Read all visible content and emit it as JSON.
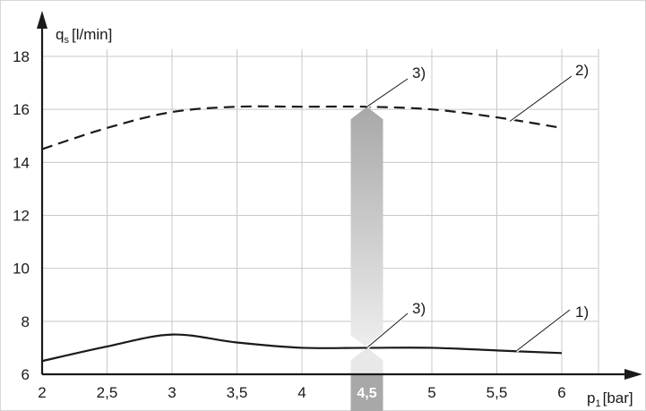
{
  "chart_data": {
    "type": "line",
    "ylabel_main": "q",
    "ylabel_sub": "s",
    "ylabel_unit": "[l/min]",
    "xlabel_main": "p",
    "xlabel_sub": "1",
    "xlabel_unit": "[bar]",
    "xlim": [
      2,
      6.3
    ],
    "ylim": [
      6,
      18
    ],
    "x_ticks": [
      2,
      2.5,
      3,
      3.5,
      4,
      4.5,
      5,
      5.5,
      6
    ],
    "x_tick_labels": [
      "2",
      "2,5",
      "3",
      "3,5",
      "4",
      "4,5",
      "5",
      "5,5",
      "6"
    ],
    "y_ticks": [
      6,
      8,
      10,
      12,
      14,
      16,
      18
    ],
    "y_tick_labels": [
      "6",
      "8",
      "10",
      "12",
      "14",
      "16",
      "18"
    ],
    "grid": true,
    "series": [
      {
        "name": "1)",
        "style": "solid",
        "x": [
          2,
          2.5,
          3,
          3.5,
          4,
          4.5,
          5,
          5.5,
          6
        ],
        "y": [
          6.5,
          7.05,
          7.5,
          7.2,
          7.0,
          7.0,
          7.0,
          6.9,
          6.8
        ]
      },
      {
        "name": "2)",
        "style": "dashed",
        "x": [
          2,
          2.5,
          3,
          3.5,
          4,
          4.5,
          5,
          5.5,
          6
        ],
        "y": [
          14.5,
          15.3,
          15.9,
          16.1,
          16.1,
          16.1,
          16.0,
          15.7,
          15.3
        ]
      }
    ],
    "highlight": {
      "x": 4.5,
      "label": "4,5",
      "markers": [
        {
          "label": "3)",
          "y": 7.0
        },
        {
          "label": "3)",
          "y": 16.1
        }
      ]
    },
    "colors": {
      "line": "#1a1a1a",
      "grid": "#c8c8c8",
      "band_light": "#e8e8e8",
      "band_dark": "#a8a8a8"
    }
  }
}
